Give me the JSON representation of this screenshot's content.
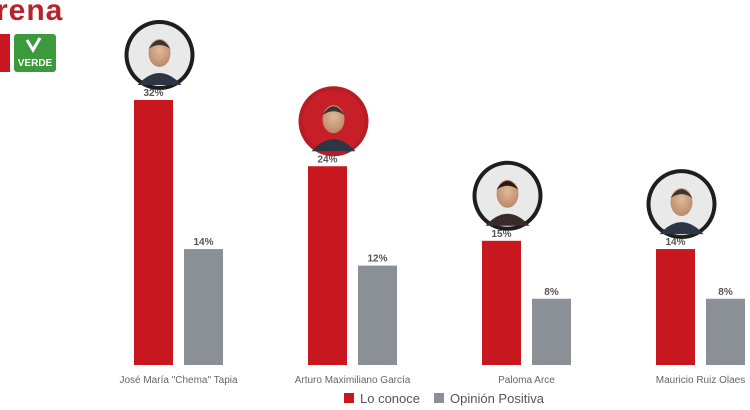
{
  "brand": {
    "party_text": "rena",
    "verde_text": "VERDE"
  },
  "colors": {
    "lo_conoce": "#c8171e",
    "opinion_positiva": "#8b9096",
    "brand_red": "#b5242b",
    "verde_green": "#3c9a3c"
  },
  "chart_data": {
    "type": "bar",
    "categories": [
      "José María \"Chema\" Tapia",
      "Arturo Maximiliano García",
      "Paloma Arce",
      "Mauricio Ruiz Olaes"
    ],
    "series": [
      {
        "name": "Lo conoce",
        "values": [
          32,
          24,
          15,
          14
        ],
        "labels": [
          "32%",
          "24%",
          "15%",
          "14%"
        ]
      },
      {
        "name": "Opinión Positiva",
        "values": [
          14,
          12,
          8,
          8
        ],
        "labels": [
          "14%",
          "12%",
          "8%",
          "8%"
        ]
      }
    ],
    "unit": "%",
    "ylim": [
      0,
      32
    ],
    "grid": false,
    "legend": "bottom-center"
  }
}
